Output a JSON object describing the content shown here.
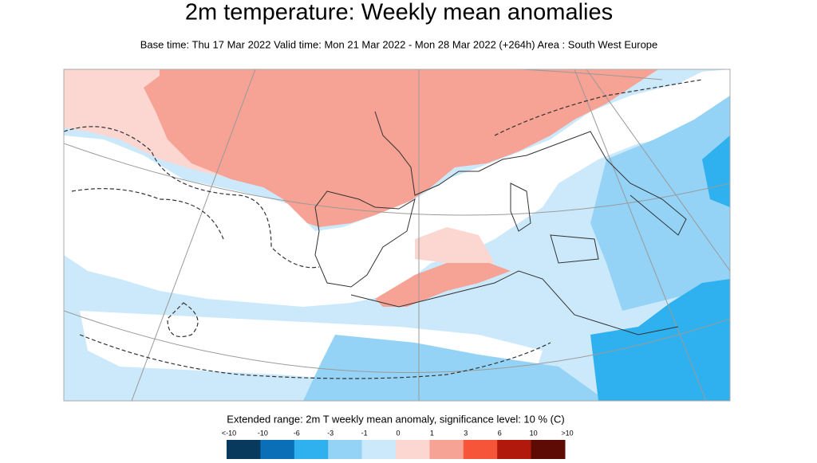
{
  "header": {
    "title": "2m temperature: Weekly mean anomalies",
    "subtitle": "Base time: Thu 17 Mar 2022 Valid time: Mon 21 Mar 2022 - Mon 28 Mar 2022 (+264h) Area : South West Europe"
  },
  "legend": {
    "title": "Extended range: 2m T weekly mean anomaly, significance level: 10 % (C)",
    "labels": [
      "<-10",
      "-10",
      "-6",
      "-3",
      "-1",
      "0",
      "1",
      "3",
      "6",
      "10",
      ">10"
    ],
    "colors": [
      "#073a5c",
      "#0a6fb6",
      "#2fb1ef",
      "#94d3f6",
      "#cbe9fa",
      "#fcd7d1",
      "#f6a294",
      "#f6553a",
      "#b1190c",
      "#5e0b05"
    ]
  }
}
